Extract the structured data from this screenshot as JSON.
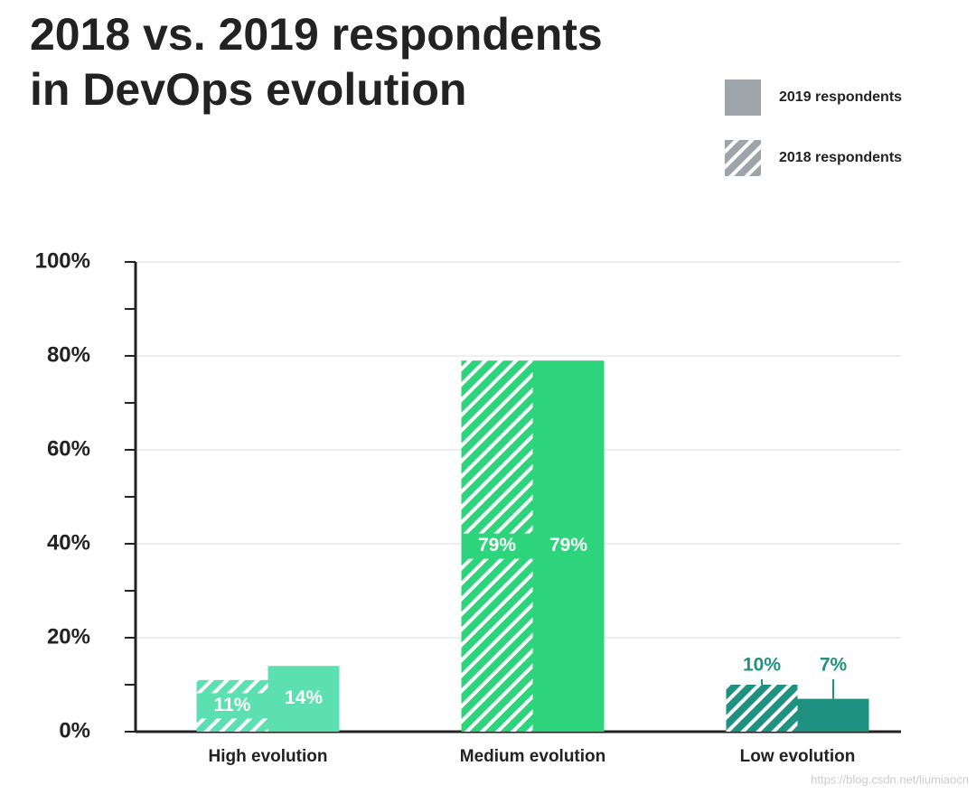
{
  "chart_data": {
    "type": "bar",
    "title": [
      "2018 vs. 2019 respondents",
      "in DevOps evolution"
    ],
    "categories": [
      "High evolution",
      "Medium evolution",
      "Low evolution"
    ],
    "category_colors": [
      "#5ce0b2",
      "#2dd47c",
      "#1f9181"
    ],
    "series": [
      {
        "name": "2018 respondents",
        "color": "#9ea5aa",
        "pattern": "hatch",
        "values": [
          11,
          79,
          10
        ],
        "value_labels": [
          "11%",
          "79%",
          "10%"
        ]
      },
      {
        "name": "2019 respondents",
        "color": "#9ea5aa",
        "pattern": "solid",
        "values": [
          14,
          79,
          7
        ],
        "value_labels": [
          "14%",
          "79%",
          "7%"
        ]
      }
    ],
    "label_position": [
      "inside",
      "inside",
      "above"
    ],
    "ylim": [
      0,
      100
    ],
    "yticks": [
      {
        "value": 0,
        "label": "0%"
      },
      {
        "value": 20,
        "label": "20%"
      },
      {
        "value": 40,
        "label": "40%"
      },
      {
        "value": 60,
        "label": "60%"
      },
      {
        "value": 80,
        "label": "80%"
      },
      {
        "value": 100,
        "label": "100%"
      }
    ],
    "minor_yticks": [
      10,
      30,
      50,
      70,
      90
    ],
    "grid": true,
    "legend": "top-right",
    "watermark": "https://blog.csdn.net/liumiaocn"
  }
}
